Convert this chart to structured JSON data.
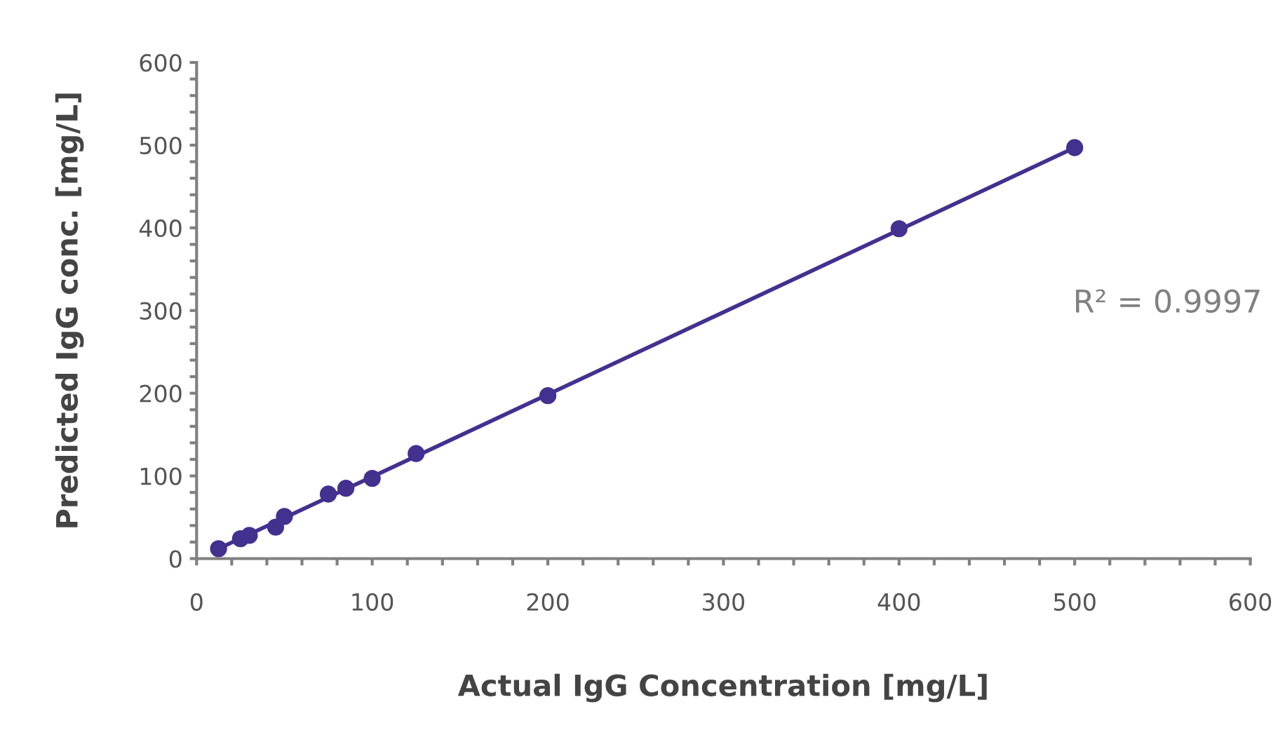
{
  "chart_data": {
    "type": "scatter",
    "xlabel": "Actual IgG Concentration [mg/L]",
    "ylabel": "Predicted IgG conc. [mg/L]",
    "series": [
      {
        "color": "#44308f",
        "x": [
          12.5,
          25,
          30,
          45,
          50,
          75,
          85,
          100,
          125,
          200,
          400,
          500
        ],
        "values": [
          12,
          24,
          28,
          38,
          51,
          78,
          85,
          97,
          127,
          197,
          399,
          497
        ],
        "marker": "circle"
      },
      {
        "type": "line",
        "color": "#44308f",
        "x": [
          12.5,
          500
        ],
        "values": [
          12,
          497
        ],
        "line_style": "solid"
      }
    ],
    "annotations": [
      "R² = 0.9997"
    ],
    "xlim": [
      0,
      600
    ],
    "ylim": [
      0,
      600
    ],
    "xticks": [
      0,
      {
        "value": 20,
        "label": null
      },
      {
        "value": 40,
        "label": null
      },
      {
        "value": 60,
        "label": null
      },
      {
        "value": 80,
        "label": null
      },
      100,
      {
        "value": 120,
        "label": null
      },
      {
        "value": 140,
        "label": null
      },
      {
        "value": 160,
        "label": null
      },
      {
        "value": 180,
        "label": null
      },
      200,
      {
        "value": 220,
        "label": null
      },
      {
        "value": 240,
        "label": null
      },
      {
        "value": 260,
        "label": null
      },
      {
        "value": 280,
        "label": null
      },
      300,
      {
        "value": 320,
        "label": null
      },
      {
        "value": 340,
        "label": null
      },
      {
        "value": 360,
        "label": null
      },
      {
        "value": 380,
        "label": null
      },
      400,
      {
        "value": 420,
        "label": null
      },
      {
        "value": 440,
        "label": null
      },
      {
        "value": 460,
        "label": null
      },
      {
        "value": 480,
        "label": null
      },
      500,
      {
        "value": 520,
        "label": null
      },
      {
        "value": 540,
        "label": null
      },
      {
        "value": 560,
        "label": null
      },
      {
        "value": 580,
        "label": null
      },
      600
    ],
    "yticks": [
      0,
      {
        "value": 20,
        "label": null
      },
      {
        "value": 40,
        "label": null
      },
      {
        "value": 60,
        "label": null
      },
      {
        "value": 80,
        "label": null
      },
      100,
      {
        "value": 120,
        "label": null
      },
      {
        "value": 140,
        "label": null
      },
      {
        "value": 160,
        "label": null
      },
      {
        "value": 180,
        "label": null
      },
      200,
      {
        "value": 220,
        "label": null
      },
      {
        "value": 240,
        "label": null
      },
      {
        "value": 260,
        "label": null
      },
      {
        "value": 280,
        "label": null
      },
      300,
      {
        "value": 320,
        "label": null
      },
      {
        "value": 340,
        "label": null
      },
      {
        "value": 360,
        "label": null
      },
      {
        "value": 380,
        "label": null
      },
      400,
      {
        "value": 420,
        "label": null
      },
      {
        "value": 440,
        "label": null
      },
      {
        "value": 460,
        "label": null
      },
      {
        "value": 480,
        "label": null
      },
      500,
      {
        "value": 520,
        "label": null
      },
      {
        "value": 540,
        "label": null
      },
      {
        "value": 560,
        "label": null
      },
      {
        "value": 580,
        "label": null
      },
      600
    ],
    "grid": false,
    "legend": false
  }
}
